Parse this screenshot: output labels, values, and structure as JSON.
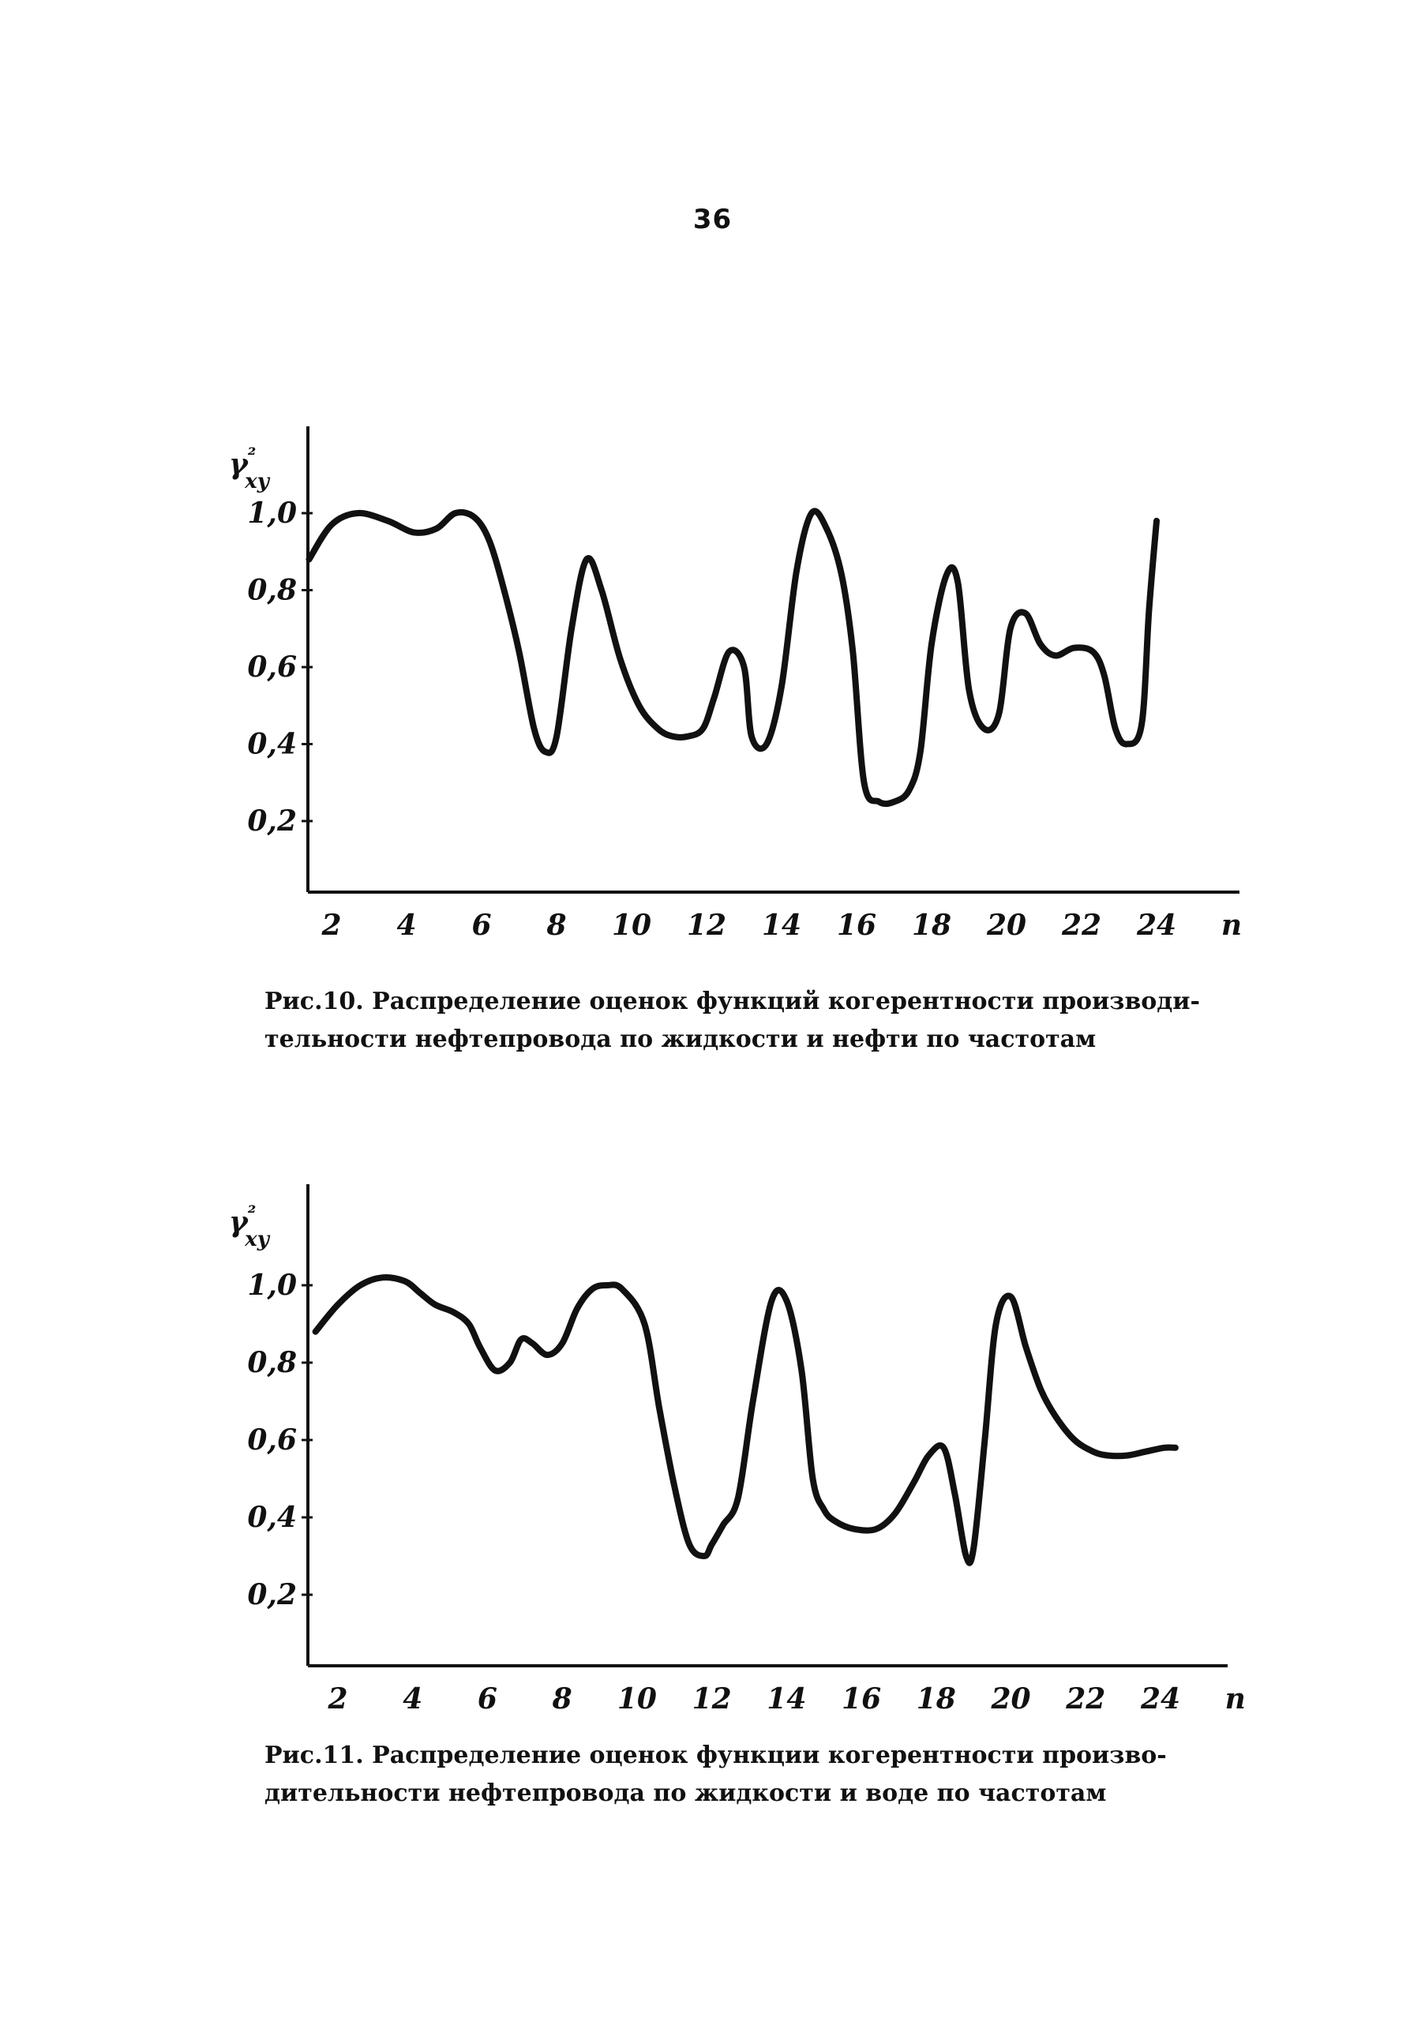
{
  "page_number": "36",
  "chart_data": [
    {
      "type": "line",
      "title": "",
      "ylabel": "γ²xy",
      "xlabel": "n",
      "y_ticks": [
        "1,0",
        "0,8",
        "0,6",
        "0,4",
        "0,2"
      ],
      "y_tick_values": [
        1.0,
        0.8,
        0.6,
        0.4,
        0.2
      ],
      "x_ticks": [
        "2",
        "4",
        "6",
        "8",
        "10",
        "12",
        "14",
        "16",
        "18",
        "20",
        "22",
        "24"
      ],
      "x_tick_values": [
        2,
        4,
        6,
        8,
        10,
        12,
        14,
        16,
        18,
        20,
        22,
        24
      ],
      "xlim": [
        1.4,
        26
      ],
      "ylim": [
        0.02,
        1.22
      ],
      "grid": false,
      "x": [
        1.4,
        2.0,
        2.7,
        3.5,
        4.2,
        4.8,
        5.3,
        5.8,
        6.2,
        6.6,
        7.0,
        7.4,
        7.7,
        8.0,
        8.4,
        8.8,
        9.2,
        9.7,
        10.2,
        10.7,
        11.1,
        11.5,
        11.9,
        12.2,
        12.6,
        13.0,
        13.2,
        13.6,
        14.0,
        14.4,
        14.8,
        15.2,
        15.6,
        15.9,
        16.2,
        16.6,
        17.0,
        17.4,
        17.7,
        18.0,
        18.4,
        18.7,
        19.0,
        19.4,
        19.8,
        20.1,
        20.5,
        20.9,
        21.3,
        21.8,
        22.3,
        22.6,
        22.9,
        23.2,
        23.6,
        23.8,
        24.0
      ],
      "series": [
        {
          "name": "",
          "y": [
            0.88,
            0.97,
            1.0,
            0.98,
            0.95,
            0.96,
            1.0,
            0.99,
            0.93,
            0.8,
            0.64,
            0.44,
            0.38,
            0.42,
            0.7,
            0.88,
            0.8,
            0.62,
            0.5,
            0.44,
            0.42,
            0.42,
            0.44,
            0.52,
            0.64,
            0.6,
            0.42,
            0.4,
            0.55,
            0.85,
            1.0,
            0.96,
            0.84,
            0.64,
            0.3,
            0.25,
            0.25,
            0.28,
            0.38,
            0.66,
            0.84,
            0.82,
            0.54,
            0.44,
            0.48,
            0.7,
            0.74,
            0.66,
            0.63,
            0.65,
            0.64,
            0.58,
            0.44,
            0.4,
            0.45,
            0.75,
            0.98
          ]
        }
      ]
    },
    {
      "type": "line",
      "title": "",
      "ylabel": "γ²xy",
      "xlabel": "n",
      "y_ticks": [
        "1,0",
        "0,8",
        "0,6",
        "0,4",
        "0,2"
      ],
      "y_tick_values": [
        1.0,
        0.8,
        0.6,
        0.4,
        0.2
      ],
      "x_ticks": [
        "2",
        "4",
        "6",
        "8",
        "10",
        "12",
        "14",
        "16",
        "18",
        "20",
        "22",
        "24"
      ],
      "x_tick_values": [
        2,
        4,
        6,
        8,
        10,
        12,
        14,
        16,
        18,
        20,
        22,
        24
      ],
      "xlim": [
        1.4,
        26
      ],
      "ylim": [
        0.02,
        1.22
      ],
      "grid": false,
      "x": [
        1.4,
        2.0,
        2.6,
        3.2,
        3.8,
        4.2,
        4.6,
        5.1,
        5.5,
        5.8,
        6.2,
        6.6,
        6.9,
        7.2,
        7.6,
        8.0,
        8.4,
        8.8,
        9.2,
        9.6,
        10.2,
        10.6,
        11.0,
        11.4,
        11.8,
        12.0,
        12.3,
        12.7,
        13.1,
        13.6,
        14.0,
        14.4,
        14.7,
        15.0,
        15.3,
        15.8,
        16.4,
        16.9,
        17.4,
        17.8,
        18.2,
        18.5,
        18.8,
        19.0,
        19.3,
        19.6,
        20.0,
        20.4,
        20.8,
        21.2,
        21.7,
        22.2,
        22.6,
        23.1,
        23.6,
        24.1,
        24.4
      ],
      "series": [
        {
          "name": "",
          "y": [
            0.88,
            0.95,
            1.0,
            1.02,
            1.01,
            0.98,
            0.95,
            0.93,
            0.9,
            0.84,
            0.78,
            0.8,
            0.86,
            0.85,
            0.82,
            0.85,
            0.94,
            0.99,
            1.0,
            0.99,
            0.9,
            0.68,
            0.48,
            0.33,
            0.3,
            0.33,
            0.38,
            0.45,
            0.7,
            0.96,
            0.96,
            0.78,
            0.5,
            0.42,
            0.39,
            0.37,
            0.37,
            0.41,
            0.49,
            0.56,
            0.58,
            0.46,
            0.3,
            0.32,
            0.6,
            0.9,
            0.97,
            0.84,
            0.73,
            0.66,
            0.6,
            0.57,
            0.56,
            0.56,
            0.57,
            0.58,
            0.58
          ]
        }
      ]
    }
  ],
  "captions": [
    {
      "line1": "Рис.10. Распределение оценок функций когерентности производи-",
      "line2": "тельности нефтепровода по жидкости и нефти по частотам"
    },
    {
      "line1": "Рис.11. Распределение оценок функции когерентности произво-",
      "line2": "дительности нефтепровода по жидкости и воде по частотам"
    }
  ]
}
